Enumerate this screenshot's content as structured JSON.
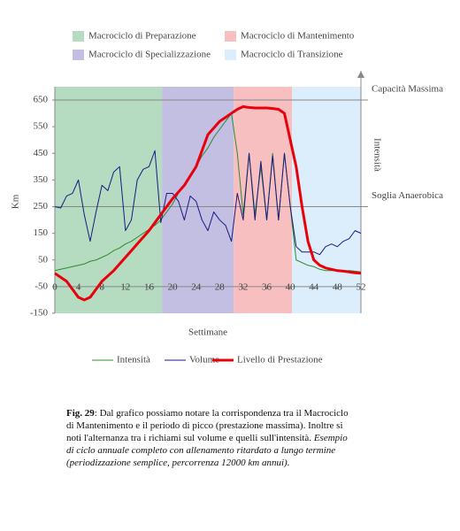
{
  "chart_data": {
    "type": "line",
    "bands": [
      {
        "name": "Macrociclo di Preparazione",
        "color": "#b5dcc0",
        "from": 0,
        "to": 18.2
      },
      {
        "name": "Macrociclo di Specializzazione",
        "color": "#c2bfe2",
        "from": 18.2,
        "to": 30.4
      },
      {
        "name": "Macrociclo di Mantenimento",
        "color": "#f8bfc1",
        "from": 30.4,
        "to": 40.3
      },
      {
        "name": "Macrociclo di Transizione",
        "color": "#dceefb",
        "from": 40.3,
        "to": 52
      }
    ],
    "x": [
      0,
      1,
      2,
      3,
      4,
      5,
      6,
      7,
      8,
      9,
      10,
      11,
      12,
      13,
      14,
      15,
      16,
      17,
      18,
      19,
      20,
      21,
      22,
      23,
      24,
      25,
      26,
      27,
      28,
      29,
      30,
      31,
      32,
      33,
      34,
      35,
      36,
      37,
      38,
      39,
      40,
      41,
      42,
      43,
      44,
      45,
      46,
      47,
      48,
      49,
      50,
      51,
      52
    ],
    "series": [
      {
        "name": "Intensità",
        "color": "#2e8b2e",
        "width": 1,
        "values": [
          10,
          15,
          20,
          25,
          30,
          35,
          45,
          50,
          60,
          70,
          85,
          95,
          110,
          120,
          135,
          150,
          165,
          180,
          200,
          230,
          260,
          300,
          330,
          370,
          400,
          440,
          470,
          510,
          540,
          570,
          600,
          450,
          220,
          450,
          220,
          400,
          200,
          450,
          200,
          450,
          250,
          50,
          40,
          30,
          25,
          15,
          10,
          10,
          10,
          10,
          10,
          8,
          5
        ]
      },
      {
        "name": "Volume",
        "color": "#1a1a80",
        "width": 1,
        "values": [
          250,
          245,
          290,
          300,
          350,
          220,
          120,
          230,
          330,
          310,
          380,
          400,
          160,
          200,
          350,
          390,
          400,
          460,
          190,
          300,
          300,
          270,
          200,
          290,
          270,
          200,
          160,
          230,
          200,
          180,
          120,
          300,
          200,
          450,
          200,
          420,
          200,
          440,
          200,
          450,
          250,
          100,
          80,
          80,
          80,
          70,
          100,
          110,
          100,
          120,
          130,
          160,
          150
        ]
      },
      {
        "name": "Livello di Prestazione",
        "color": "#e8000b",
        "width": 3,
        "values": [
          0,
          -15,
          -30,
          -60,
          -90,
          -100,
          -90,
          -60,
          -30,
          -10,
          10,
          35,
          60,
          85,
          110,
          135,
          160,
          190,
          220,
          250,
          280,
          305,
          330,
          365,
          400,
          460,
          520,
          545,
          570,
          585,
          600,
          615,
          625,
          622,
          620,
          620,
          620,
          618,
          615,
          600,
          500,
          400,
          250,
          120,
          50,
          30,
          20,
          15,
          10,
          8,
          5,
          2,
          0
        ]
      }
    ],
    "xlim": [
      0,
      52
    ],
    "xticks": [
      0,
      4,
      8,
      12,
      16,
      20,
      24,
      28,
      32,
      36,
      40,
      44,
      48,
      52
    ],
    "x_axis_at": -50,
    "ylim": [
      -150,
      650
    ],
    "yticks": [
      -150,
      -50,
      50,
      150,
      250,
      350,
      450,
      550,
      650
    ],
    "reference_lines": [
      {
        "value": 650,
        "label": "Capacità Massima"
      },
      {
        "value": 250,
        "label": "Soglia Anaerobica"
      }
    ],
    "right_label": "Intensità",
    "xlabel": "Settimane",
    "ylabel": "Km"
  },
  "caption": {
    "label": "Fig. 29",
    "text": ": Dal grafico possiamo notare la corrispondenza tra il Macrociclo di Mantenimento e il periodo di picco (prestazione massima). Inoltre si noti l'alternanza tra i richiami sul volume e quelli sull'intensità. ",
    "italic": "Esempio di ciclo annuale completo con allenamento ritardato a lungo termine (periodizzazione semplice, percorrenza 12000 km annui)."
  }
}
